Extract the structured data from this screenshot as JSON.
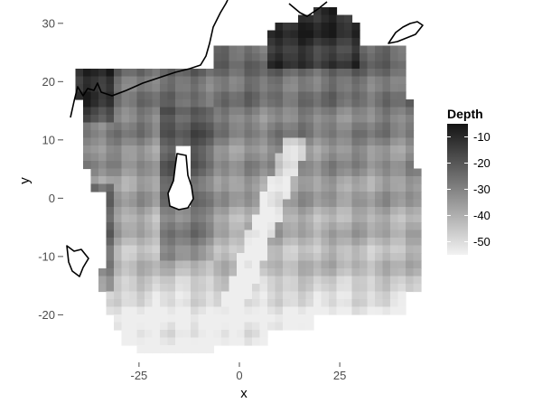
{
  "chart_data": {
    "type": "heatmap",
    "xlabel": "x",
    "ylabel": "y",
    "x_ticks": [
      -25,
      0,
      25
    ],
    "y_ticks": [
      -20,
      -10,
      0,
      10,
      20,
      30
    ],
    "xlim": [
      -45,
      45
    ],
    "ylim": [
      -28,
      34
    ],
    "grid": false,
    "legend": {
      "title": "Depth",
      "placement": "right",
      "ticks": [
        -10,
        -20,
        -30,
        -40,
        -50
      ],
      "range": [
        -55,
        -5
      ],
      "color_low": "#f2f2f2",
      "color_high": "#141414"
    },
    "landmask_outline_color": "#000000"
  }
}
